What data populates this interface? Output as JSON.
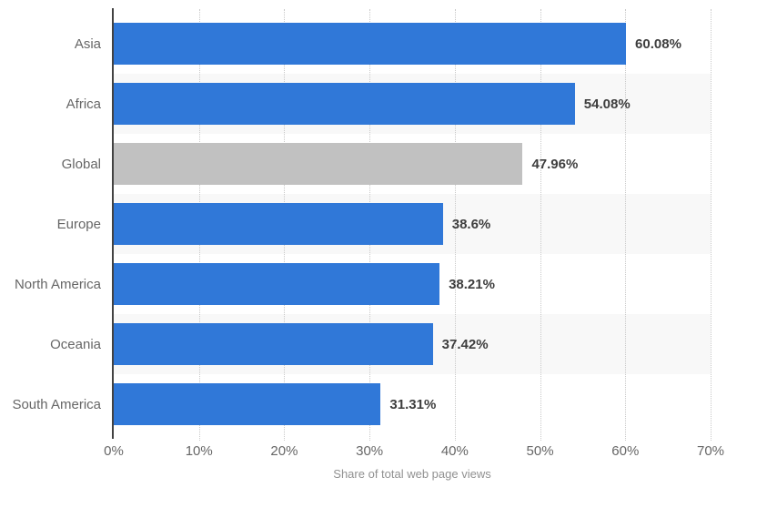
{
  "chart_data": {
    "type": "bar",
    "orientation": "horizontal",
    "categories": [
      "Asia",
      "Africa",
      "Global",
      "Europe",
      "North America",
      "Oceania",
      "South America"
    ],
    "values": [
      60.08,
      54.08,
      47.96,
      38.6,
      38.21,
      37.42,
      31.31
    ],
    "value_labels": [
      "60.08%",
      "54.08%",
      "47.96%",
      "38.6%",
      "38.21%",
      "37.42%",
      "31.31%"
    ],
    "bar_colors": [
      "#3078d8",
      "#3078d8",
      "#c1c1c1",
      "#3078d8",
      "#3078d8",
      "#3078d8",
      "#3078d8"
    ],
    "title": "",
    "xlabel": "Share of total web page views",
    "ylabel": "",
    "xlim": [
      0,
      70
    ],
    "x_ticks": [
      "0%",
      "10%",
      "20%",
      "30%",
      "40%",
      "50%",
      "60%",
      "70%"
    ],
    "grid": "vertical-dotted",
    "legend": "none"
  },
  "colors": {
    "bar_blue": "#3078d8",
    "bar_gray": "#c1c1c1",
    "row_band": "#f8f8f8",
    "gridline": "#c9c9c9",
    "axis_line": "#424242",
    "category_text": "#666666",
    "value_text": "#3d3d3d",
    "tick_text": "#666666",
    "axis_title_text": "#919191"
  }
}
